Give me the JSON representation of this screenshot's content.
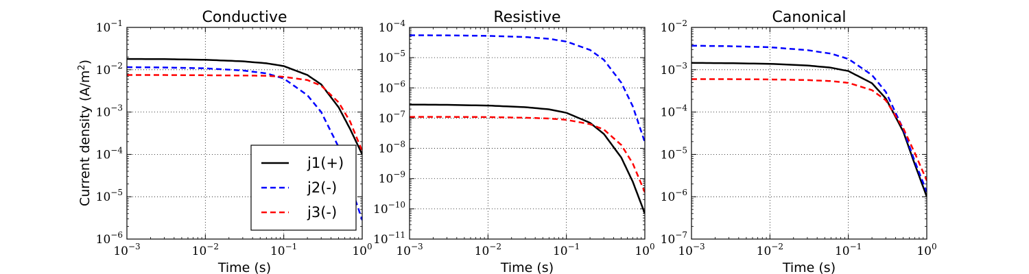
{
  "figure": {
    "ylabel": "Current density (A/m",
    "ylabel_sup": "2",
    "ylabel_close": ")"
  },
  "legend": {
    "entries": [
      {
        "label": "j1(+)",
        "color": "#000000",
        "dash": "solid"
      },
      {
        "label": "j2(-)",
        "color": "#0000ff",
        "dash": "dashed"
      },
      {
        "label": "j3(-)",
        "color": "#ff0000",
        "dash": "dashed"
      }
    ]
  },
  "chart_data": [
    {
      "type": "line",
      "title": "Conductive",
      "xlabel": "Time (s)",
      "x_scale": "log",
      "y_scale": "log",
      "xlim": [
        0.001,
        1
      ],
      "ylim": [
        1e-06,
        0.1
      ],
      "x_ticks": [
        "10",
        "10",
        "10",
        "10"
      ],
      "x_tick_exps": [
        "−3",
        "−2",
        "−1",
        "0"
      ],
      "y_ticks": [
        "10",
        "10",
        "10",
        "10",
        "10",
        "10"
      ],
      "y_tick_exps": [
        "−6",
        "−5",
        "−4",
        "−3",
        "−2",
        "−1"
      ],
      "grid": true,
      "x": [
        0.001,
        0.003,
        0.01,
        0.03,
        0.06,
        0.1,
        0.2,
        0.3,
        0.5,
        0.7,
        1.0
      ],
      "series": [
        {
          "name": "j1(+)",
          "color": "#000000",
          "dash": "solid",
          "values": [
            0.018,
            0.0178,
            0.0172,
            0.0158,
            0.0142,
            0.0122,
            0.0075,
            0.0045,
            0.0013,
            0.0004,
            0.0001
          ]
        },
        {
          "name": "j2(-)",
          "color": "#0000ff",
          "dash": "dashed",
          "values": [
            0.0115,
            0.0113,
            0.0108,
            0.0096,
            0.0082,
            0.0062,
            0.0025,
            0.001,
            0.00015,
            2e-05,
            2.8e-06
          ]
        },
        {
          "name": "j3(-)",
          "color": "#ff0000",
          "dash": "dashed",
          "values": [
            0.0075,
            0.0075,
            0.0074,
            0.0073,
            0.0072,
            0.0068,
            0.0057,
            0.0042,
            0.0017,
            0.0006,
            0.00012
          ]
        }
      ]
    },
    {
      "type": "line",
      "title": "Resistive",
      "xlabel": "Time (s)",
      "x_scale": "log",
      "y_scale": "log",
      "xlim": [
        0.001,
        1
      ],
      "ylim": [
        1e-11,
        0.0001
      ],
      "x_ticks": [
        "10",
        "10",
        "10",
        "10"
      ],
      "x_tick_exps": [
        "−3",
        "−2",
        "−1",
        "0"
      ],
      "y_ticks": [
        "10",
        "10",
        "10",
        "10",
        "10",
        "10",
        "10",
        "10"
      ],
      "y_tick_exps": [
        "−11",
        "−10",
        "−9",
        "−8",
        "−7",
        "−6",
        "−5",
        "−4"
      ],
      "grid": true,
      "x": [
        0.001,
        0.003,
        0.01,
        0.03,
        0.06,
        0.1,
        0.2,
        0.3,
        0.5,
        0.7,
        1.0
      ],
      "series": [
        {
          "name": "j1(+)",
          "color": "#000000",
          "dash": "solid",
          "values": [
            2.8e-07,
            2.75e-07,
            2.6e-07,
            2.3e-07,
            1.95e-07,
            1.5e-07,
            7e-08,
            3e-08,
            5e-09,
            8e-10,
            7e-11
          ]
        },
        {
          "name": "j2(-)",
          "color": "#0000ff",
          "dash": "dashed",
          "values": [
            5.5e-05,
            5.45e-05,
            5.25e-05,
            4.8e-05,
            4.2e-05,
            3.4e-05,
            1.8e-05,
            8.5e-06,
            1.5e-06,
            2.5e-07,
            1.6e-08
          ]
        },
        {
          "name": "j3(-)",
          "color": "#ff0000",
          "dash": "dashed",
          "values": [
            1.1e-07,
            1.1e-07,
            1.08e-07,
            1.03e-07,
            9.7e-08,
            8.8e-08,
            6.3e-08,
            4.2e-08,
            1.3e-08,
            3.2e-09,
            3.5e-10
          ]
        }
      ]
    },
    {
      "type": "line",
      "title": "Canonical",
      "xlabel": "Time (s)",
      "x_scale": "log",
      "y_scale": "log",
      "xlim": [
        0.001,
        1
      ],
      "ylim": [
        1e-07,
        0.01
      ],
      "x_ticks": [
        "10",
        "10",
        "10",
        "10"
      ],
      "x_tick_exps": [
        "−3",
        "−2",
        "−1",
        "0"
      ],
      "y_ticks": [
        "10",
        "10",
        "10",
        "10",
        "10",
        "10"
      ],
      "y_tick_exps": [
        "−7",
        "−6",
        "−5",
        "−4",
        "−3",
        "−2"
      ],
      "grid": true,
      "x": [
        0.001,
        0.003,
        0.01,
        0.03,
        0.06,
        0.1,
        0.2,
        0.3,
        0.5,
        0.7,
        1.0
      ],
      "series": [
        {
          "name": "j1(+)",
          "color": "#000000",
          "dash": "solid",
          "values": [
            0.00145,
            0.00143,
            0.00138,
            0.00126,
            0.00112,
            0.00093,
            0.00048,
            0.00021,
            3.5e-05,
            6e-06,
            1e-06
          ]
        },
        {
          "name": "j2(-)",
          "color": "#0000ff",
          "dash": "dashed",
          "values": [
            0.0037,
            0.0036,
            0.0034,
            0.0029,
            0.0024,
            0.0018,
            0.00075,
            0.0003,
            4e-05,
            7e-06,
            1.3e-06
          ]
        },
        {
          "name": "j3(-)",
          "color": "#ff0000",
          "dash": "dashed",
          "values": [
            0.0006,
            0.0006,
            0.00059,
            0.00057,
            0.00054,
            0.00049,
            0.00033,
            0.00019,
            4.2e-05,
            1.1e-05,
            2.4e-06
          ]
        }
      ]
    }
  ]
}
